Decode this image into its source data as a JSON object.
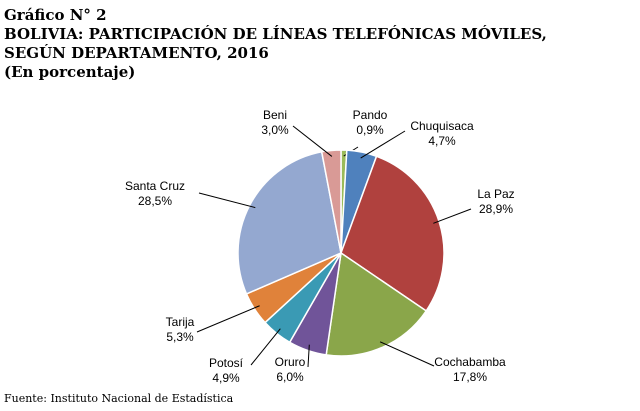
{
  "figure_number": "Gráfico N° 2",
  "title_line1": "BOLIVIA: PARTICIPACIÓN DE LÍNEAS TELEFÓNICAS MÓVILES,",
  "title_line2": "SEGÚN DEPARTAMENTO, 2016",
  "subtitle": "(En porcentaje)",
  "source": "Fuente: Instituto Nacional de Estadística",
  "chart_data": {
    "type": "pie",
    "start": "top, clockwise",
    "slices": [
      {
        "label": "Pando",
        "value": 0.9,
        "value_label": "0,9%",
        "color": "#9bbb59"
      },
      {
        "label": "Chuquisaca",
        "value": 4.7,
        "value_label": "4,7%",
        "color": "#4f81bd"
      },
      {
        "label": "La Paz",
        "value": 28.9,
        "value_label": "28,9%",
        "color": "#b0413e"
      },
      {
        "label": "Cochabamba",
        "value": 17.8,
        "value_label": "17,8%",
        "color": "#8aa64a"
      },
      {
        "label": "Oruro",
        "value": 6.0,
        "value_label": "6,0%",
        "color": "#705499"
      },
      {
        "label": "Potosí",
        "value": 4.9,
        "value_label": "4,9%",
        "color": "#3a9ab4"
      },
      {
        "label": "Tarija",
        "value": 5.3,
        "value_label": "5,3%",
        "color": "#e0823a"
      },
      {
        "label": "Santa Cruz",
        "value": 28.5,
        "value_label": "28,5%",
        "color": "#94a8d0"
      },
      {
        "label": "Beni",
        "value": 3.0,
        "value_label": "3,0%",
        "color": "#d99a96"
      }
    ]
  }
}
